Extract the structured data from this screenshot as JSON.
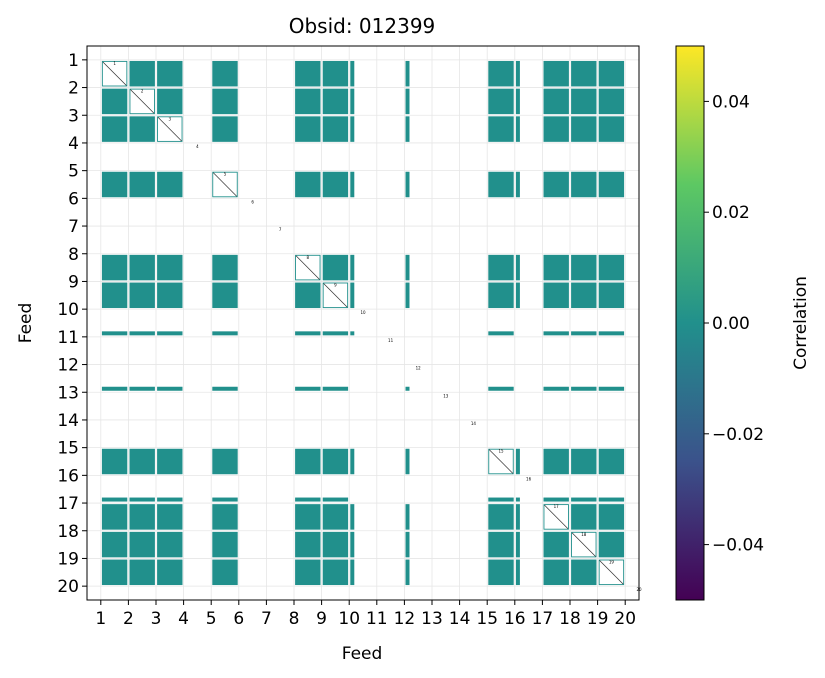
{
  "chart_data": {
    "type": "heatmap",
    "title": "Obsid: 012399",
    "xlabel": "Feed",
    "ylabel": "Feed",
    "feeds": [
      "1",
      "2",
      "3",
      "4",
      "5",
      "6",
      "7",
      "8",
      "9",
      "10",
      "11",
      "12",
      "13",
      "14",
      "15",
      "16",
      "17",
      "18",
      "19",
      "20"
    ],
    "active_feeds": [
      1,
      2,
      3,
      5,
      8,
      9,
      10,
      12,
      15,
      16,
      17,
      18,
      19
    ],
    "full_feeds": [
      1,
      2,
      3,
      5,
      8,
      9,
      15,
      17,
      18,
      19
    ],
    "edge_feeds": [
      10,
      12,
      16
    ],
    "cell_value": 0.0,
    "cell_color": "#21908c",
    "grid": true,
    "colorbar": {
      "label": "Correlation",
      "min": -0.05,
      "max": 0.05,
      "ticks": [
        {
          "value": 0.04,
          "label": "0.04"
        },
        {
          "value": 0.02,
          "label": "0.02"
        },
        {
          "value": 0.0,
          "label": "0.00"
        },
        {
          "value": -0.02,
          "label": "−0.02"
        },
        {
          "value": -0.04,
          "label": "−0.04"
        }
      ],
      "colormap": [
        "#440154",
        "#3b528b",
        "#21908c",
        "#5dc863",
        "#fde725"
      ]
    }
  }
}
